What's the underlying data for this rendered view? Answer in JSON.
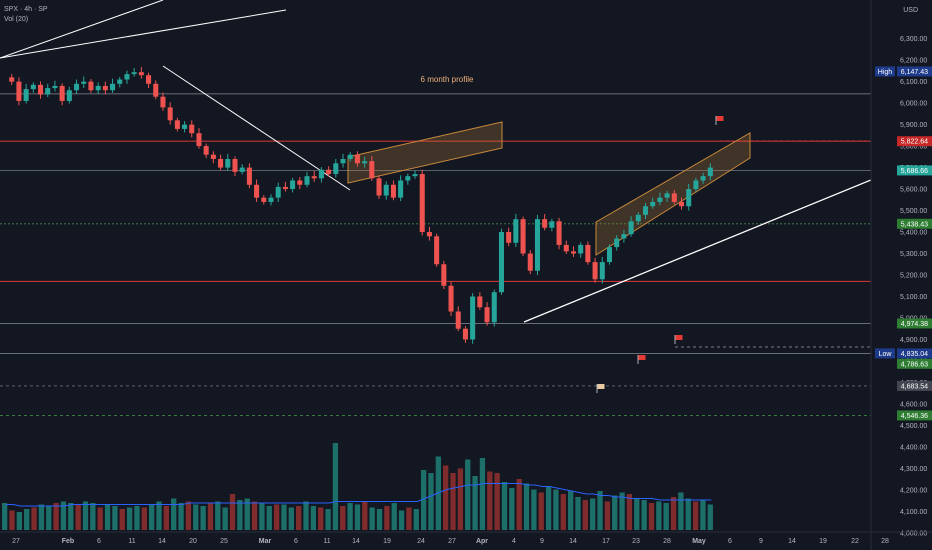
{
  "legend": {
    "symbol": "SPX · 4h · SP",
    "volume": "Vol (20)"
  },
  "currency": "USD",
  "annotations": {
    "profile_label": "6 month profile"
  },
  "colors": {
    "background": "#131722",
    "bull": "#26a69a",
    "bear": "#ef5350",
    "vol_bull": "#1f7a72",
    "vol_bear": "#8d2f2e",
    "vol_ma": "#2962ff",
    "red_level": "#e53935",
    "green_level": "#43a047",
    "channel": "#c8893a",
    "trendline": "#ffffff",
    "axis_text": "#b2b5be",
    "grid": "#2a2e39"
  },
  "chart_data": {
    "type": "candlestick",
    "y_range": [
      3920,
      6480
    ],
    "y_ticks": [
      "6,300.00",
      "6,200.00",
      "6,100.00",
      "6,000.00",
      "5,900.00",
      "5,800.00",
      "5,700.00",
      "5,600.00",
      "5,500.00",
      "5,400.00",
      "5,300.00",
      "5,200.00",
      "5,100.00",
      "5,000.00",
      "4,900.00",
      "4,800.00",
      "4,700.00",
      "4,600.00",
      "4,500.00",
      "4,400.00",
      "4,300.00",
      "4,200.00",
      "4,100.00",
      "4,000.00"
    ],
    "x_ticks": [
      "27",
      "Feb",
      "6",
      "11",
      "14",
      "20",
      "25",
      "Mar",
      "6",
      "11",
      "14",
      "19",
      "24",
      "27",
      "Apr",
      "4",
      "9",
      "14",
      "17",
      "23",
      "28",
      "May",
      "6",
      "9",
      "14",
      "19",
      "22",
      "28"
    ],
    "price_labels": [
      {
        "value": 6147.43,
        "text": "6,147.43",
        "tag": "High",
        "style": "dark"
      },
      {
        "value": 5822.64,
        "text": "5,822.64",
        "style": "red"
      },
      {
        "value": 5686.66,
        "text": "5,686.66",
        "style": "teal"
      },
      {
        "value": 5438.43,
        "text": "5,438.43",
        "style": "green"
      },
      {
        "value": 4974.38,
        "text": "4,974.38",
        "style": "green"
      },
      {
        "value": 4835.04,
        "text": "4,835.04",
        "tag": "Low",
        "style": "dark"
      },
      {
        "value": 4786.63,
        "text": "4,786.63",
        "style": "green"
      },
      {
        "value": 4683.54,
        "text": "4,683.54",
        "style": "gray"
      },
      {
        "value": 4546.36,
        "text": "4,546.36",
        "style": "green"
      }
    ],
    "levels": [
      {
        "value": 6043,
        "style": "gray-solid"
      },
      {
        "value": 5822.64,
        "style": "red-solid"
      },
      {
        "value": 5686.66,
        "style": "gray-solid"
      },
      {
        "value": 5438.43,
        "style": "green-dotted"
      },
      {
        "value": 5170,
        "style": "red-solid"
      },
      {
        "value": 4974.38,
        "style": "gray-solid"
      },
      {
        "value": 4835.04,
        "style": "gray-solid"
      },
      {
        "value": 4683.54,
        "style": "gray-dashed"
      },
      {
        "value": 4546.36,
        "style": "green-dashed"
      }
    ],
    "path": [
      6120,
      6100,
      6010,
      6065,
      6085,
      6040,
      6070,
      6080,
      6010,
      6060,
      6090,
      6100,
      6060,
      6080,
      6060,
      6090,
      6110,
      6135,
      6144,
      6130,
      6090,
      6030,
      5980,
      5920,
      5880,
      5900,
      5860,
      5800,
      5760,
      5740,
      5700,
      5740,
      5680,
      5700,
      5620,
      5560,
      5540,
      5560,
      5610,
      5600,
      5640,
      5620,
      5660,
      5650,
      5690,
      5670,
      5720,
      5740,
      5760,
      5720,
      5730,
      5650,
      5570,
      5620,
      5560,
      5640,
      5660,
      5670,
      5400,
      5380,
      5250,
      5150,
      5030,
      4950,
      4900,
      5100,
      5050,
      4980,
      5120,
      5400,
      5350,
      5460,
      5300,
      5220,
      5460,
      5420,
      5450,
      5340,
      5310,
      5300,
      5340,
      5260,
      5180,
      5260,
      5330,
      5370,
      5390,
      5450,
      5480,
      5520,
      5540,
      5560,
      5580,
      5540,
      5520,
      5600,
      5640,
      5660,
      5700
    ],
    "volume": {
      "range": [
        0,
        100
      ],
      "values": [
        18,
        13,
        12,
        14,
        15,
        17,
        16,
        18,
        19,
        18,
        17,
        19,
        18,
        15,
        17,
        16,
        14,
        15,
        16,
        15,
        17,
        19,
        16,
        21,
        18,
        19,
        17,
        16,
        18,
        19,
        15,
        24,
        20,
        21,
        19,
        18,
        16,
        17,
        17,
        15,
        16,
        19,
        16,
        15,
        14,
        58,
        16,
        18,
        17,
        19,
        15,
        14,
        16,
        18,
        13,
        15,
        14,
        40,
        38,
        49,
        43,
        38,
        41,
        47,
        36,
        48,
        39,
        38,
        32,
        28,
        34,
        31,
        27,
        25,
        29,
        27,
        24,
        26,
        22,
        20,
        21,
        26,
        19,
        23,
        25,
        24,
        21,
        20,
        18,
        19,
        18,
        22,
        25,
        21,
        19,
        20,
        17
      ],
      "ma": [
        17,
        17,
        16,
        16,
        16,
        16,
        16,
        16,
        16,
        17,
        17,
        17,
        17,
        17,
        17,
        17,
        17,
        17,
        17,
        17,
        17,
        17,
        17,
        17,
        17,
        18,
        18,
        18,
        18,
        18,
        18,
        18,
        18,
        18,
        18,
        18,
        18,
        18,
        18,
        18,
        18,
        18,
        18,
        18,
        18,
        19,
        19,
        19,
        19,
        19,
        19,
        19,
        19,
        19,
        19,
        19,
        19,
        21,
        23,
        25,
        27,
        28,
        29,
        30,
        30,
        31,
        31,
        31,
        31,
        31,
        31,
        30,
        30,
        29,
        29,
        28,
        27,
        26,
        25,
        24,
        24,
        23,
        23,
        22,
        22,
        21,
        21,
        21,
        21,
        20,
        20,
        20,
        20,
        20,
        20,
        20,
        20
      ]
    }
  }
}
